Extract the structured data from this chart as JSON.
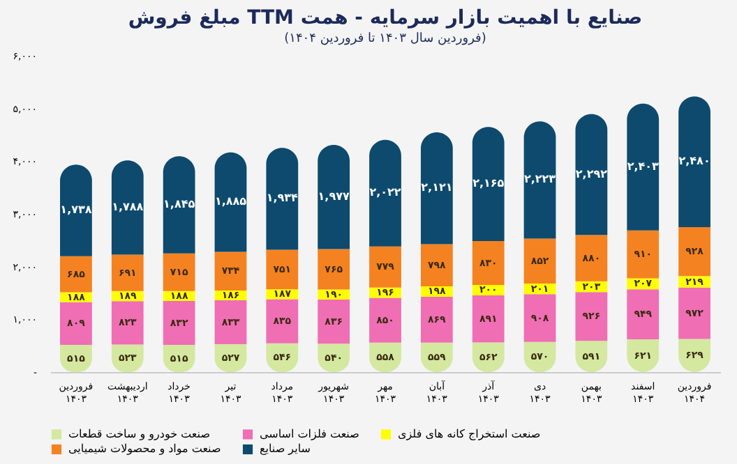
{
  "chart_data": {
    "type": "bar",
    "stacked": true,
    "title": "مبلغ فروش TTM صنایع با اهمیت بازار سرمایه - همت",
    "subtitle": "(فروردین سال ۱۴۰۳ تا فروردین ۱۴۰۴)",
    "categories": [
      "فروردین ۱۴۰۳",
      "اردیبهشت ۱۴۰۳",
      "خرداد ۱۴۰۳",
      "تیر ۱۴۰۳",
      "مرداد ۱۴۰۳",
      "شهریور ۱۴۰۳",
      "مهر ۱۴۰۳",
      "آبان ۱۴۰۳",
      "آذر ۱۴۰۳",
      "دی ۱۴۰۳",
      "بهمن ۱۴۰۳",
      "اسفند ۱۴۰۳",
      "فروردین ۱۴۰۴"
    ],
    "series": [
      {
        "name": "صنعت خودرو و ساخت قطعات",
        "color": "#d4e8a0",
        "values": [
          515,
          523,
          515,
          527,
          546,
          540,
          558,
          559,
          562,
          570,
          591,
          621,
          629
        ],
        "value_labels": [
          "۵۱۵",
          "۵۲۳",
          "۵۱۵",
          "۵۲۷",
          "۵۴۶",
          "۵۴۰",
          "۵۵۸",
          "۵۵۹",
          "۵۶۲",
          "۵۷۰",
          "۵۹۱",
          "۶۲۱",
          "۶۲۹"
        ]
      },
      {
        "name": "صنعت فلزات اساسی",
        "color": "#f06eb4",
        "values": [
          809,
          823,
          832,
          833,
          835,
          836,
          850,
          869,
          891,
          908,
          926,
          949,
          972
        ],
        "value_labels": [
          "۸۰۹",
          "۸۲۳",
          "۸۳۲",
          "۸۳۳",
          "۸۳۵",
          "۸۳۶",
          "۸۵۰",
          "۸۶۹",
          "۸۹۱",
          "۹۰۸",
          "۹۲۶",
          "۹۴۹",
          "۹۷۲"
        ]
      },
      {
        "name": "صنعت استخراج کانه های فلزی",
        "color": "#ffff00",
        "values": [
          188,
          189,
          188,
          186,
          187,
          190,
          196,
          198,
          200,
          201,
          203,
          207,
          219
        ],
        "value_labels": [
          "۱۸۸",
          "۱۸۹",
          "۱۸۸",
          "۱۸۶",
          "۱۸۷",
          "۱۹۰",
          "۱۹۶",
          "۱۹۸",
          "۲۰۰",
          "۲۰۱",
          "۲۰۳",
          "۲۰۷",
          "۲۱۹"
        ]
      },
      {
        "name": "صنعت مواد و محصولات شیمیایی",
        "color": "#f58220",
        "values": [
          685,
          691,
          715,
          734,
          751,
          765,
          779,
          798,
          830,
          852,
          880,
          910,
          928
        ],
        "value_labels": [
          "۶۸۵",
          "۶۹۱",
          "۷۱۵",
          "۷۳۴",
          "۷۵۱",
          "۷۶۵",
          "۷۷۹",
          "۷۹۸",
          "۸۳۰",
          "۸۵۲",
          "۸۸۰",
          "۹۱۰",
          "۹۲۸"
        ]
      },
      {
        "name": "سایر صنایع",
        "color": "#0d4a6e",
        "values": [
          1738,
          1788,
          1845,
          1885,
          1934,
          1977,
          2022,
          2121,
          2165,
          2223,
          2292,
          2403,
          2480
        ],
        "value_labels": [
          "۱,۷۳۸",
          "۱,۷۸۸",
          "۱,۸۴۵",
          "۱,۸۸۵",
          "۱,۹۳۴",
          "۱,۹۷۷",
          "۲,۰۲۲",
          "۲,۱۲۱",
          "۲,۱۶۵",
          "۲,۲۲۳",
          "۲,۲۹۲",
          "۲,۴۰۳",
          "۲,۴۸۰"
        ]
      }
    ],
    "ylim": [
      0,
      6000
    ],
    "yticks": [
      {
        "value": 0,
        "label": "-"
      },
      {
        "value": 1000,
        "label": "۱,۰۰۰"
      },
      {
        "value": 2000,
        "label": "۲,۰۰۰"
      },
      {
        "value": 3000,
        "label": "۳,۰۰۰"
      },
      {
        "value": 4000,
        "label": "۴,۰۰۰"
      },
      {
        "value": 5000,
        "label": "۵,۰۰۰"
      },
      {
        "value": 6000,
        "label": "۶,۰۰۰"
      }
    ],
    "grid": false,
    "legend": "bottom"
  }
}
